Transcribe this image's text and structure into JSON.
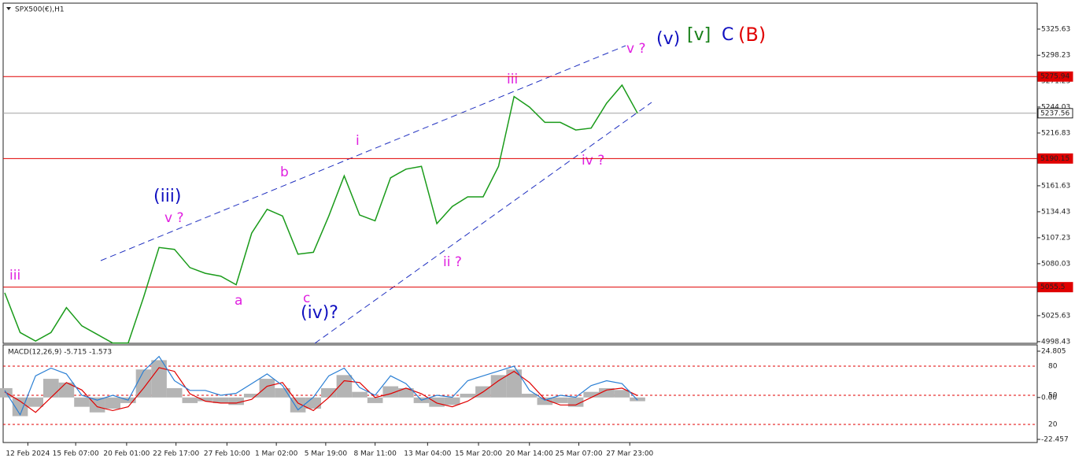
{
  "chart_data": [
    {
      "type": "line",
      "title": "SPX500(€),H1",
      "color": "#1a9b1a",
      "values": [
        5049.5,
        5008,
        4999,
        5008,
        5034,
        5015,
        5006,
        4997,
        4997,
        5045,
        5097,
        5095,
        5076,
        5070,
        5067,
        5058,
        5112,
        5137,
        5130,
        5090,
        5092,
        5130,
        5172,
        5131,
        5125,
        5170,
        5179,
        5182,
        5122,
        5140,
        5150,
        5150,
        5182,
        5255,
        5244,
        5228,
        5228,
        5220,
        5222,
        5248,
        5267,
        5237.56
      ],
      "xlim": [
        -0.1,
        66.9
      ],
      "xticks": [
        {
          "value": 1.5,
          "label": "12 Feb 2024"
        },
        {
          "value": 4.6,
          "label": "15 Feb 07:00"
        },
        {
          "value": 7.9,
          "label": "20 Feb 01:00"
        },
        {
          "value": 11.1,
          "label": "22 Feb 17:00"
        },
        {
          "value": 14.4,
          "label": "27 Feb 10:00"
        },
        {
          "value": 17.6,
          "label": "1 Mar 02:00"
        },
        {
          "value": 20.8,
          "label": "5 Mar 19:00"
        },
        {
          "value": 24,
          "label": "8 Mar 11:00"
        },
        {
          "value": 27.4,
          "label": "13 Mar 04:00"
        },
        {
          "value": 30.7,
          "label": "15 Mar 20:00"
        },
        {
          "value": 34,
          "label": "20 Mar 14:00"
        },
        {
          "value": 37.2,
          "label": "25 Mar 07:00"
        },
        {
          "value": 40.5,
          "label": "27 Mar 23:00"
        }
      ],
      "ylim": [
        4996.7,
        5352.8
      ],
      "yticks": [
        5325.63,
        5298.23,
        5271.23,
        5244.03,
        5216.83,
        5161.63,
        5134.43,
        5107.23,
        5080.03,
        5025.63,
        4998.43
      ],
      "levels": [
        {
          "value": 5275.94,
          "color": "#e00000"
        },
        {
          "value": 5237.56,
          "color": "#a0a0a0"
        },
        {
          "value": 5190.15,
          "color": "#e00000"
        },
        {
          "value": 5055.5,
          "color": "#e00000"
        }
      ],
      "annotations": [
        {
          "text": "iii",
          "color": "#e020e0"
        },
        {
          "text": "(iii)",
          "color": "#1010c0"
        },
        {
          "text": "v ?",
          "color": "#e020e0"
        },
        {
          "text": "a",
          "color": "#e020e0"
        },
        {
          "text": "b",
          "color": "#e020e0"
        },
        {
          "text": "c",
          "color": "#e020e0"
        },
        {
          "text": "(iv)?",
          "color": "#1010c0"
        },
        {
          "text": "i",
          "color": "#e020e0"
        },
        {
          "text": "ii ?",
          "color": "#e020e0"
        },
        {
          "text": "iii",
          "color": "#e020e0"
        },
        {
          "text": "iv ?",
          "color": "#e020e0"
        },
        {
          "text": "v ?",
          "color": "#e020e0"
        },
        {
          "text": "(v)",
          "color": "#1010c0"
        },
        {
          "text": "[v]",
          "color": "#188018"
        },
        {
          "text": "C",
          "color": "#1010c0"
        },
        {
          "text": "(B)",
          "color": "#e00000"
        }
      ]
    },
    {
      "type": "macd",
      "title": "MACD(12,26,9) -5.715 -1.573",
      "ylim": [
        -22.457,
        24.805
      ],
      "yticks": [
        24.805,
        {
          "value": 0,
          "label": "0.00"
        },
        -22.457
      ],
      "y2lim": [
        4.6,
        95.4
      ],
      "y2ticks": [
        80,
        50,
        20
      ],
      "series": [
        {
          "color": "#b4b4b4",
          "values": [
            5,
            -10,
            -5,
            10,
            8,
            -5,
            -8,
            -6,
            -3,
            15,
            20,
            5,
            -3,
            -2,
            -3,
            -4,
            2,
            10,
            5,
            -8,
            -6,
            5,
            12,
            3,
            -3,
            6,
            5,
            -3,
            -5,
            -4,
            2,
            6,
            12,
            15,
            2,
            -4,
            -3,
            -5,
            3,
            5,
            4,
            -2
          ]
        },
        {
          "color": "#e00000",
          "values": [
            3,
            -2,
            -8,
            0,
            8,
            4,
            -5,
            -7,
            -5,
            5,
            16,
            14,
            2,
            -2,
            -3,
            -3,
            -1,
            6,
            8,
            -3,
            -7,
            0,
            9,
            8,
            0,
            2,
            5,
            2,
            -3,
            -5,
            -2,
            3,
            9,
            14,
            8,
            -1,
            -4,
            -4,
            0,
            4,
            5,
            1
          ]
        },
        {
          "color": "#2a7fd4",
          "axis": "y2",
          "values": [
            55,
            30,
            70,
            78,
            72,
            50,
            45,
            50,
            45,
            75,
            90,
            65,
            55,
            55,
            50,
            52,
            62,
            72,
            60,
            35,
            48,
            70,
            78,
            58,
            50,
            70,
            62,
            45,
            50,
            48,
            65,
            70,
            75,
            80,
            55,
            45,
            50,
            48,
            60,
            65,
            62,
            45
          ]
        }
      ]
    }
  ]
}
